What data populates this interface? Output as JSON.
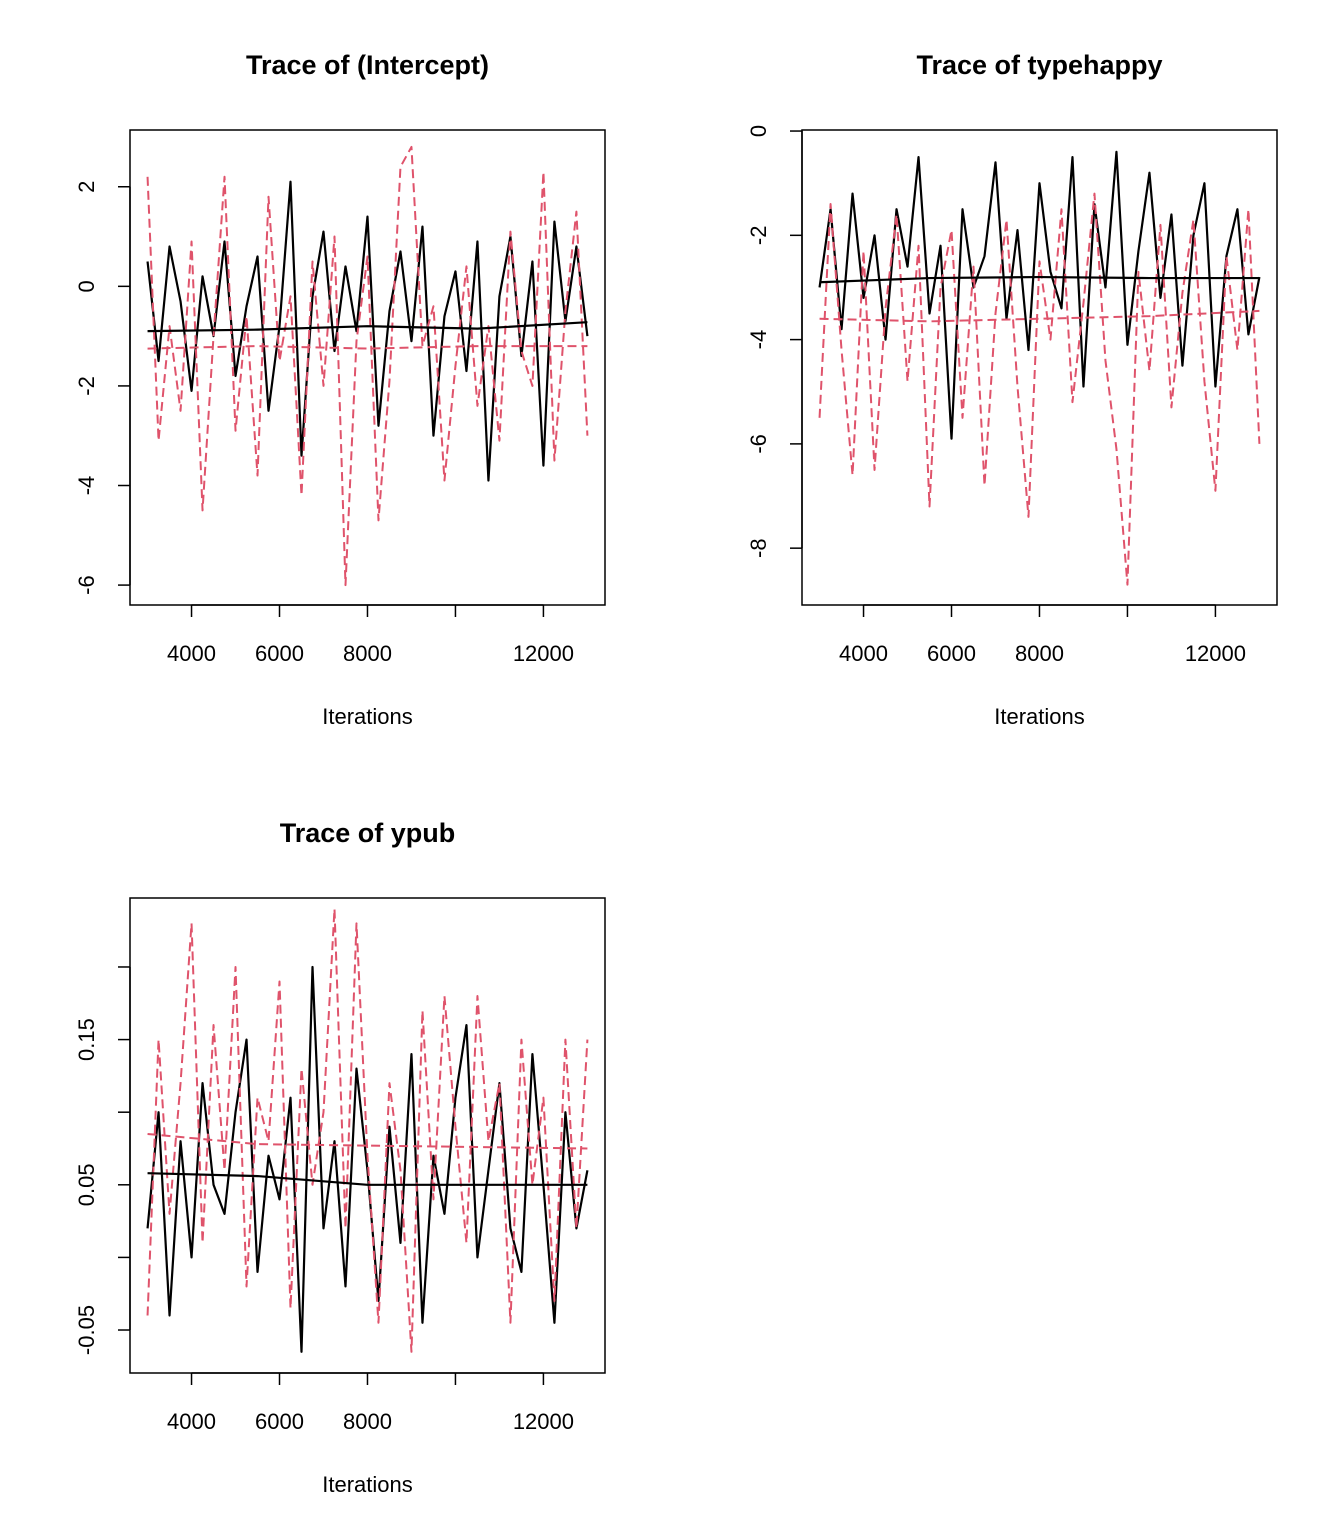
{
  "chart_data": [
    {
      "type": "line",
      "title": "Trace of (Intercept)",
      "xlabel": "Iterations",
      "x": [
        3000,
        3250,
        3500,
        3750,
        4000,
        4250,
        4500,
        4750,
        5000,
        5250,
        5500,
        5750,
        6000,
        6250,
        6500,
        6750,
        7000,
        7250,
        7500,
        7750,
        8000,
        8250,
        8500,
        8750,
        9000,
        9250,
        9500,
        9750,
        10000,
        10250,
        10500,
        10750,
        11000,
        11250,
        11500,
        11750,
        12000,
        12250,
        12500,
        12750,
        13000
      ],
      "xlim": [
        2601,
        13400
      ],
      "xticks": [
        4000,
        6000,
        8000,
        {
          "value": 10000,
          "label": null
        },
        12000
      ],
      "ylim": [
        -6.4,
        3.14
      ],
      "yticks": [
        -6,
        -4,
        -2,
        0,
        2
      ],
      "series": [
        {
          "color": "#000000",
          "dash": false,
          "values": [
            0.5,
            -1.5,
            0.8,
            -0.3,
            -2.1,
            0.2,
            -1.0,
            0.9,
            -1.8,
            -0.4,
            0.6,
            -2.5,
            -0.8,
            2.1,
            -3.4,
            -0.2,
            1.1,
            -1.3,
            0.4,
            -0.9,
            1.4,
            -2.8,
            -0.5,
            0.7,
            -1.1,
            1.2,
            -3.0,
            -0.6,
            0.3,
            -1.7,
            0.9,
            -3.9,
            -0.2,
            1.0,
            -1.4,
            0.5,
            -3.6,
            1.3,
            -0.7,
            0.8,
            -1.0
          ]
        },
        {
          "color": "#DF536B",
          "dash": true,
          "values": [
            2.2,
            -3.1,
            -0.8,
            -2.5,
            0.9,
            -4.5,
            -1.0,
            2.2,
            -2.9,
            -0.6,
            -3.8,
            1.8,
            -1.5,
            -0.2,
            -4.2,
            0.5,
            -2.0,
            1.0,
            -6.0,
            -1.1,
            0.6,
            -4.7,
            -1.9,
            2.4,
            2.8,
            -1.2,
            -0.4,
            -3.9,
            -1.6,
            0.4,
            -2.4,
            -0.8,
            -3.1,
            1.1,
            -1.3,
            -2.0,
            2.3,
            -3.5,
            -0.5,
            1.5,
            -3.0
          ]
        },
        {
          "color": "#000000",
          "dash": false,
          "x": [
            3000,
            5500,
            8000,
            10500,
            13000
          ],
          "values": [
            -0.9,
            -0.87,
            -0.8,
            -0.85,
            -0.72
          ]
        },
        {
          "color": "#DF536B",
          "dash": true,
          "x": [
            3000,
            5500,
            8000,
            10500,
            13000
          ],
          "values": [
            -1.25,
            -1.2,
            -1.25,
            -1.2,
            -1.2
          ]
        }
      ]
    },
    {
      "type": "line",
      "title": "Trace of typehappy",
      "xlabel": "Iterations",
      "x": [
        3000,
        3250,
        3500,
        3750,
        4000,
        4250,
        4500,
        4750,
        5000,
        5250,
        5500,
        5750,
        6000,
        6250,
        6500,
        6750,
        7000,
        7250,
        7500,
        7750,
        8000,
        8250,
        8500,
        8750,
        9000,
        9250,
        9500,
        9750,
        10000,
        10250,
        10500,
        10750,
        11000,
        11250,
        11500,
        11750,
        12000,
        12250,
        12500,
        12750,
        13000
      ],
      "xlim": [
        2601,
        13400
      ],
      "xticks": [
        4000,
        6000,
        8000,
        {
          "value": 10000,
          "label": null
        },
        12000
      ],
      "ylim": [
        -9.09,
        0.02
      ],
      "yticks": [
        -8,
        -6,
        -4,
        -2,
        0
      ],
      "series": [
        {
          "color": "#000000",
          "dash": false,
          "values": [
            -3.0,
            -1.5,
            -3.8,
            -1.2,
            -3.2,
            -2.0,
            -4.0,
            -1.5,
            -2.6,
            -0.5,
            -3.5,
            -2.2,
            -5.9,
            -1.5,
            -3.0,
            -2.4,
            -0.6,
            -3.6,
            -1.9,
            -4.2,
            -1.0,
            -2.7,
            -3.4,
            -0.5,
            -4.9,
            -1.4,
            -3.0,
            -0.4,
            -4.1,
            -2.3,
            -0.8,
            -3.2,
            -1.6,
            -4.5,
            -2.0,
            -1.0,
            -4.9,
            -2.4,
            -1.5,
            -3.9,
            -2.8
          ]
        },
        {
          "color": "#DF536B",
          "dash": true,
          "values": [
            -5.5,
            -1.4,
            -4.2,
            -6.6,
            -2.3,
            -6.5,
            -3.4,
            -1.6,
            -4.8,
            -2.2,
            -7.2,
            -3.0,
            -1.9,
            -5.5,
            -2.6,
            -6.8,
            -3.5,
            -1.7,
            -4.9,
            -7.4,
            -2.5,
            -4.0,
            -1.5,
            -5.2,
            -3.3,
            -1.2,
            -4.4,
            -6.1,
            -8.7,
            -2.7,
            -4.6,
            -1.8,
            -5.3,
            -3.1,
            -1.7,
            -4.8,
            -6.9,
            -2.4,
            -4.2,
            -1.5,
            -6.0
          ]
        },
        {
          "color": "#000000",
          "dash": false,
          "x": [
            3000,
            5500,
            8000,
            10500,
            13000
          ],
          "values": [
            -2.9,
            -2.82,
            -2.8,
            -2.82,
            -2.82
          ]
        },
        {
          "color": "#DF536B",
          "dash": true,
          "x": [
            3000,
            5500,
            8000,
            10500,
            13000
          ],
          "values": [
            -3.6,
            -3.65,
            -3.6,
            -3.55,
            -3.45
          ]
        }
      ]
    },
    {
      "type": "line",
      "title": "Trace of ypub",
      "xlabel": "Iterations",
      "x": [
        3000,
        3250,
        3500,
        3750,
        4000,
        4250,
        4500,
        4750,
        5000,
        5250,
        5500,
        5750,
        6000,
        6250,
        6500,
        6750,
        7000,
        7250,
        7500,
        7750,
        8000,
        8250,
        8500,
        8750,
        9000,
        9250,
        9500,
        9750,
        10000,
        10250,
        10500,
        10750,
        11000,
        11250,
        11500,
        11750,
        12000,
        12250,
        12500,
        12750,
        13000
      ],
      "xlim": [
        2601,
        13400
      ],
      "xticks": [
        4000,
        6000,
        8000,
        {
          "value": 10000,
          "label": null
        },
        12000
      ],
      "ylim": [
        -0.0796,
        0.2475
      ],
      "yticks": [
        -0.05,
        {
          "value": 0,
          "label": null
        },
        0.05,
        {
          "value": 0.1,
          "label": null
        },
        0.15,
        {
          "value": 0.2,
          "label": null
        }
      ],
      "series": [
        {
          "color": "#000000",
          "dash": false,
          "values": [
            0.02,
            0.1,
            -0.04,
            0.08,
            0.0,
            0.12,
            0.05,
            0.03,
            0.1,
            0.15,
            -0.01,
            0.07,
            0.04,
            0.11,
            -0.065,
            0.2,
            0.02,
            0.08,
            -0.02,
            0.13,
            0.06,
            -0.03,
            0.09,
            0.01,
            0.14,
            -0.045,
            0.07,
            0.03,
            0.11,
            0.16,
            0.0,
            0.06,
            0.12,
            0.02,
            -0.01,
            0.14,
            0.05,
            -0.045,
            0.1,
            0.02,
            0.06
          ]
        },
        {
          "color": "#DF536B",
          "dash": true,
          "values": [
            -0.04,
            0.15,
            0.03,
            0.12,
            0.23,
            0.01,
            0.16,
            0.06,
            0.2,
            -0.02,
            0.11,
            0.08,
            0.19,
            -0.035,
            0.13,
            0.05,
            0.1,
            0.24,
            0.02,
            0.23,
            0.07,
            -0.045,
            0.12,
            0.06,
            -0.065,
            0.17,
            0.04,
            0.18,
            0.09,
            0.01,
            0.18,
            0.08,
            0.12,
            -0.045,
            0.15,
            0.05,
            0.11,
            -0.03,
            0.15,
            0.02,
            0.15
          ]
        },
        {
          "color": "#000000",
          "dash": false,
          "x": [
            3000,
            5500,
            8000,
            10500,
            13000
          ],
          "values": [
            0.058,
            0.056,
            0.05,
            0.05,
            0.05
          ]
        },
        {
          "color": "#DF536B",
          "dash": true,
          "x": [
            3000,
            5500,
            8000,
            10500,
            13000
          ],
          "values": [
            0.085,
            0.078,
            0.077,
            0.076,
            0.075
          ]
        }
      ]
    }
  ]
}
